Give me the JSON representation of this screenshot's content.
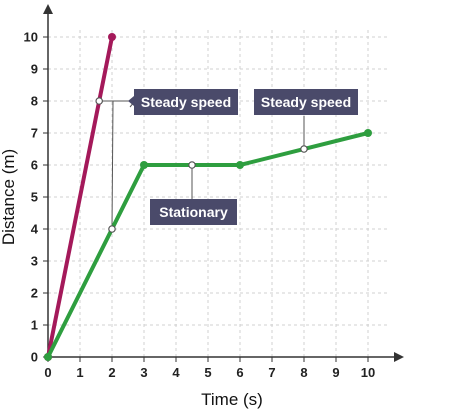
{
  "chart_data": {
    "type": "line",
    "xlabel": "Time (s)",
    "ylabel": "Distance (m)",
    "xlim": [
      0,
      10
    ],
    "ylim": [
      0,
      10
    ],
    "xticks": [
      0,
      1,
      2,
      3,
      4,
      5,
      6,
      7,
      8,
      9,
      10
    ],
    "yticks": [
      0,
      1,
      2,
      3,
      4,
      5,
      6,
      7,
      8,
      9,
      10
    ],
    "grid": true,
    "series": [
      {
        "color": "#a4195a",
        "x": [
          0,
          2
        ],
        "y": [
          0,
          10
        ]
      },
      {
        "color": "#2e9e3f",
        "x": [
          0,
          3,
          6,
          10
        ],
        "y": [
          0,
          6,
          6,
          7
        ]
      }
    ],
    "annotations": [
      {
        "text": "Steady speed"
      },
      {
        "text": "Stationary"
      },
      {
        "text": "Steady speed"
      }
    ]
  },
  "colors": {
    "callout_bg": "#4a4a6a",
    "grid": "#d0d0d0",
    "axis": "#333333"
  }
}
